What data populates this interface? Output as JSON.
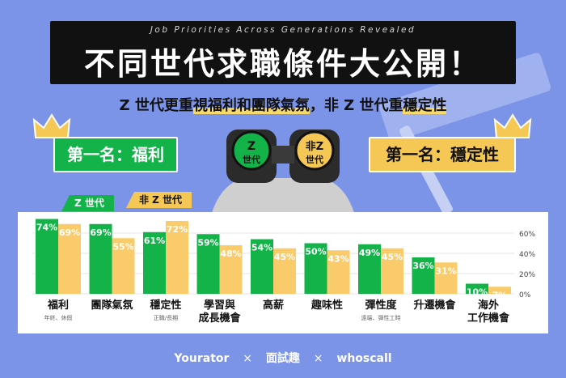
{
  "header": {
    "subtitle_en": "Job Priorities Across Generations Revealed",
    "title": "不同世代求職條件大公開！"
  },
  "subtitle": {
    "part1": "Z 世代更重",
    "highlight1": "視福利和團隊氣氛",
    "part2": "，非 Z 世代重",
    "highlight2": "穩定性"
  },
  "ranks": {
    "z": "第一名：福利",
    "non_z": "第一名：穩定性"
  },
  "binocular": {
    "left_top": "Z",
    "left_bottom": "世代",
    "right_top": "非Z",
    "right_bottom": "世代"
  },
  "legend": {
    "z": "Z 世代",
    "non_z": "非 Z 世代"
  },
  "colors": {
    "z": "#13b34a",
    "non_z": "#f9cb6b",
    "background": "#7c94e8"
  },
  "chart_data": {
    "type": "bar",
    "categories": [
      "福利",
      "團隊氣氛",
      "穩定性",
      "學習與成長機會",
      "高薪",
      "趣味性",
      "彈性度",
      "升遷機會",
      "海外工作機會"
    ],
    "category_lines": [
      [
        "福利"
      ],
      [
        "團隊氣氛"
      ],
      [
        "穩定性"
      ],
      [
        "學習與",
        "成長機會"
      ],
      [
        "高薪"
      ],
      [
        "趣味性"
      ],
      [
        "彈性度"
      ],
      [
        "升遷機會"
      ],
      [
        "海外",
        "工作機會"
      ]
    ],
    "category_notes": [
      "年終、休假",
      "",
      "正職/長期",
      "",
      "",
      "",
      "遠端、彈性工時",
      "",
      ""
    ],
    "series": [
      {
        "name": "Z 世代",
        "values": [
          74,
          69,
          61,
          59,
          54,
          50,
          49,
          36,
          10
        ]
      },
      {
        "name": "非 Z 世代",
        "values": [
          69,
          55,
          72,
          48,
          45,
          43,
          45,
          31,
          7
        ]
      }
    ],
    "value_suffix": "%",
    "yticks": [
      "0%",
      "20%",
      "40%",
      "60%"
    ],
    "ylim": [
      0,
      80
    ],
    "grid": true,
    "legend": "top-left"
  },
  "footer": {
    "brand1": "Yourator",
    "sep": "×",
    "brand2": "面試趣",
    "brand3": "whoscall"
  }
}
